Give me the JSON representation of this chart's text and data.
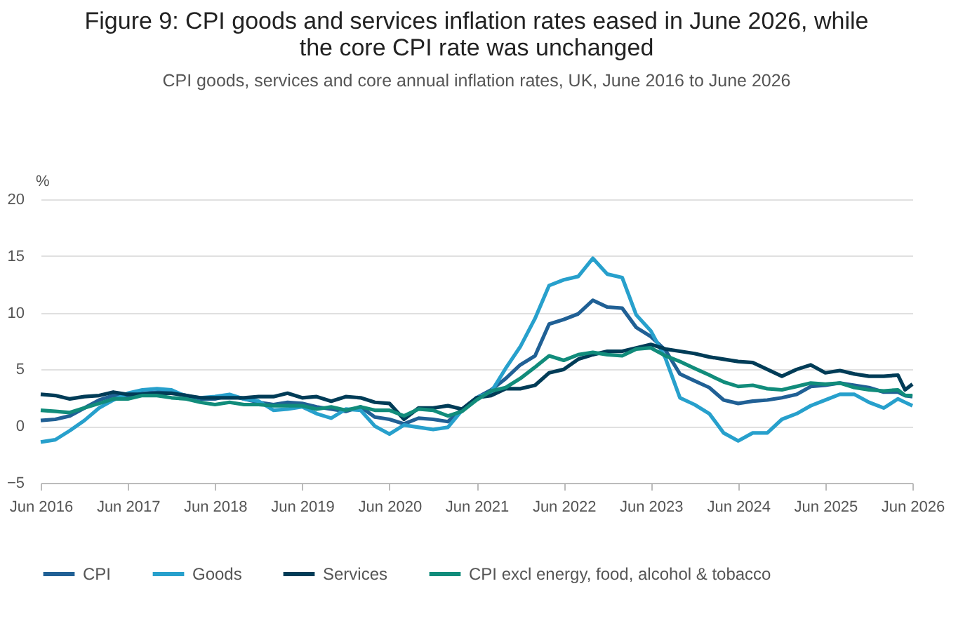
{
  "chart_data": {
    "type": "line",
    "title": "Figure 9: CPI goods and services inflation rates eased in June 2026, while the core CPI rate was unchanged",
    "subtitle": "CPI goods, services and core annual inflation rates, UK, June 2016 to June 2026",
    "ylabel": "%",
    "x": [
      "2016-06",
      "2016-08",
      "2016-10",
      "2016-12",
      "2017-02",
      "2017-04",
      "2017-06",
      "2017-08",
      "2017-10",
      "2017-12",
      "2018-02",
      "2018-04",
      "2018-06",
      "2018-08",
      "2018-10",
      "2018-12",
      "2019-02",
      "2019-04",
      "2019-06",
      "2019-08",
      "2019-10",
      "2019-12",
      "2020-02",
      "2020-04",
      "2020-06",
      "2020-08",
      "2020-10",
      "2020-12",
      "2021-02",
      "2021-04",
      "2021-06",
      "2021-08",
      "2021-10",
      "2021-12",
      "2022-02",
      "2022-04",
      "2022-06",
      "2022-08",
      "2022-10",
      "2022-12",
      "2023-02",
      "2023-04",
      "2023-06",
      "2023-08",
      "2023-10",
      "2023-12",
      "2024-02",
      "2024-04",
      "2024-06",
      "2024-08",
      "2024-10",
      "2024-12",
      "2025-02",
      "2025-04",
      "2025-06",
      "2025-08",
      "2025-10",
      "2025-12",
      "2026-02",
      "2026-04",
      "2026-05",
      "2026-06"
    ],
    "series": [
      {
        "name": "CPI",
        "color": "#206095",
        "values": [
          0.5,
          0.6,
          0.9,
          1.6,
          2.3,
          2.7,
          2.6,
          2.9,
          3.0,
          3.0,
          2.7,
          2.4,
          2.4,
          2.7,
          2.4,
          2.1,
          1.9,
          2.1,
          2.0,
          1.7,
          1.5,
          1.3,
          1.7,
          0.8,
          0.6,
          0.2,
          0.7,
          0.6,
          0.4,
          1.5,
          2.5,
          3.2,
          4.2,
          5.4,
          6.2,
          9.0,
          9.4,
          9.9,
          11.1,
          10.5,
          10.4,
          8.7,
          7.9,
          6.7,
          4.6,
          4.0,
          3.4,
          2.3,
          2.0,
          2.2,
          2.3,
          2.5,
          2.8,
          3.5,
          3.6,
          3.8,
          3.6,
          3.4,
          3.0,
          3.0,
          2.7,
          2.6
        ]
      },
      {
        "name": "Goods",
        "color": "#27a0cc",
        "values": [
          -1.4,
          -1.2,
          -0.4,
          0.5,
          1.6,
          2.3,
          2.9,
          3.2,
          3.3,
          3.2,
          2.6,
          2.5,
          2.6,
          2.8,
          2.4,
          2.2,
          1.4,
          1.5,
          1.7,
          1.1,
          0.7,
          1.5,
          1.4,
          0.0,
          -0.7,
          0.1,
          -0.1,
          -0.3,
          -0.1,
          1.4,
          2.5,
          3.0,
          5.1,
          7.0,
          9.5,
          12.4,
          12.9,
          13.2,
          14.8,
          13.4,
          13.1,
          9.8,
          8.4,
          6.0,
          2.5,
          1.9,
          1.1,
          -0.6,
          -1.3,
          -0.6,
          -0.6,
          0.6,
          1.1,
          1.8,
          2.3,
          2.8,
          2.8,
          2.1,
          1.6,
          2.4,
          2.1,
          1.8
        ]
      },
      {
        "name": "Services",
        "color": "#003c57",
        "values": [
          2.8,
          2.7,
          2.4,
          2.6,
          2.7,
          3.0,
          2.8,
          2.8,
          2.9,
          2.9,
          2.7,
          2.5,
          2.5,
          2.5,
          2.5,
          2.6,
          2.6,
          2.9,
          2.5,
          2.6,
          2.2,
          2.6,
          2.5,
          2.1,
          2.0,
          0.6,
          1.6,
          1.6,
          1.8,
          1.5,
          2.5,
          2.7,
          3.3,
          3.3,
          3.6,
          4.7,
          5.0,
          5.9,
          6.3,
          6.6,
          6.6,
          6.9,
          7.2,
          6.8,
          6.6,
          6.4,
          6.1,
          5.9,
          5.7,
          5.6,
          5.0,
          4.4,
          5.0,
          5.4,
          4.7,
          4.9,
          4.6,
          4.4,
          4.4,
          4.5,
          3.2,
          3.7
        ]
      },
      {
        "name": "CPI excl energy, food, alcohol & tobacco",
        "color": "#118c7b",
        "values": [
          1.4,
          1.3,
          1.2,
          1.6,
          2.0,
          2.4,
          2.4,
          2.7,
          2.7,
          2.5,
          2.4,
          2.1,
          1.9,
          2.1,
          1.9,
          1.9,
          1.8,
          1.8,
          1.8,
          1.5,
          1.7,
          1.4,
          1.7,
          1.4,
          1.4,
          0.9,
          1.5,
          1.4,
          0.9,
          1.3,
          2.3,
          3.1,
          3.4,
          4.2,
          5.2,
          6.2,
          5.8,
          6.3,
          6.5,
          6.3,
          6.2,
          6.8,
          6.9,
          6.2,
          5.7,
          5.1,
          4.5,
          3.9,
          3.5,
          3.6,
          3.3,
          3.2,
          3.5,
          3.8,
          3.7,
          3.8,
          3.4,
          3.2,
          3.1,
          3.2,
          2.7,
          2.7
        ]
      }
    ],
    "xlim": [
      "2016-06",
      "2026-06"
    ],
    "xticks": [
      {
        "value": "2016-06",
        "label": "Jun 2016"
      },
      {
        "value": "2017-06",
        "label": "Jun 2017"
      },
      {
        "value": "2018-06",
        "label": "Jun 2018"
      },
      {
        "value": "2019-06",
        "label": "Jun 2019"
      },
      {
        "value": "2020-06",
        "label": "Jun 2020"
      },
      {
        "value": "2021-06",
        "label": "Jun 2021"
      },
      {
        "value": "2022-06",
        "label": "Jun 2022"
      },
      {
        "value": "2023-06",
        "label": "Jun 2023"
      },
      {
        "value": "2024-06",
        "label": "Jun 2024"
      },
      {
        "value": "2025-06",
        "label": "Jun 2025"
      },
      {
        "value": "2026-06",
        "label": "Jun 2026"
      }
    ],
    "ylim": [
      -5,
      20
    ],
    "yticks": [
      -5,
      0,
      5,
      10,
      15,
      20
    ],
    "grid": "y",
    "legend": "bottom",
    "line_style": "solid"
  }
}
